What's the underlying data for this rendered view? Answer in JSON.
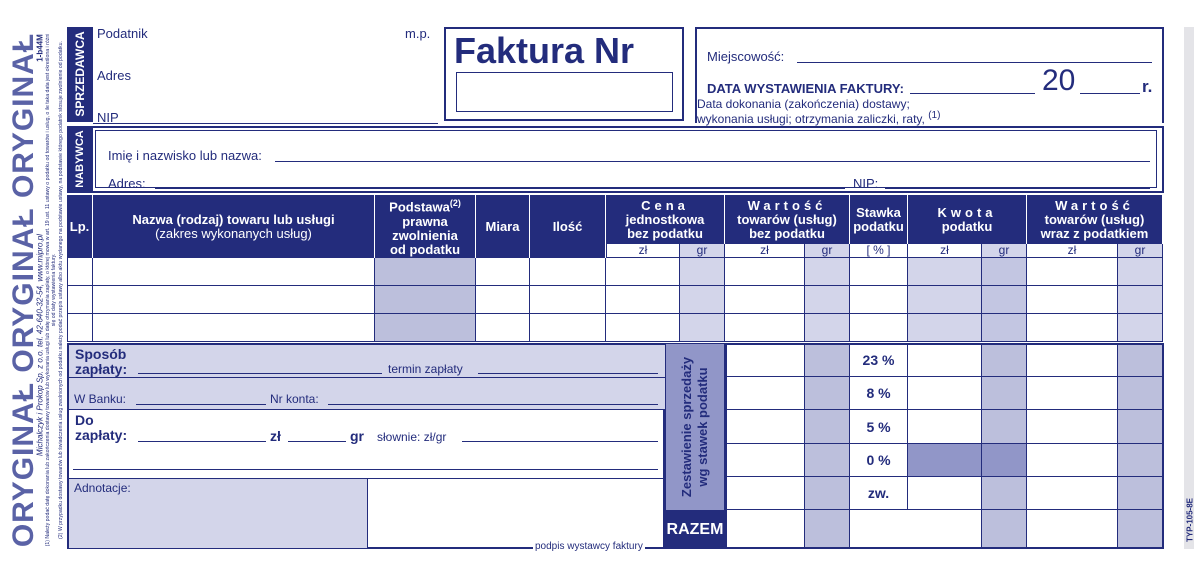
{
  "side": {
    "watermark": "ORYGINAŁ ORYGINAŁ ORYGINAŁ",
    "code": "1-b44M",
    "publisher": "Michalczyk i Prokop Sp. z o.o. tel. 42-640-32-54, www.mipro.pl",
    "footnote_1": "(1) Należy podać datę dokonania lub zakończenia dostawy towarów lub wykonania usługi lub datę otrzymania zapłaty, o której mowa w art. 19 ust. 11 ustawy o podatku od towarów i usług, o ile taka data jest określona i różni się od daty wystawienia faktury.",
    "footnote_2": "(2) W przypadku dostawy towarów lub świadczenia usług zwolnionych od podatku należy podać przepis ustawy albo aktu wydanego na podstawie ustawy, na podstawie którego podatnik stosuje zwolnienie od podatku.",
    "form_type": "TYP-105-8E"
  },
  "seller": {
    "label": "SPRZEDAWCA",
    "taxpayer": "Podatnik",
    "address": "Adres",
    "nip": "NIP",
    "stamp": "m.p."
  },
  "invoice": {
    "title": "Faktura Nr"
  },
  "dates": {
    "place": "Miejscowość:",
    "issue_date": "DATA WYSTAWIENIA FAKTURY:",
    "year_prefix": "20",
    "year_suffix": "r.",
    "delivery_date": "Data dokonania (zakończenia) dostawy;",
    "delivery_date_2": "wykonania usługi; otrzymania zaliczki, raty,",
    "footnote_ref": "(1)"
  },
  "buyer": {
    "label": "NABYWCA",
    "name": "Imię i nazwisko lub nazwa:",
    "address": "Adres:",
    "nip": "NIP:"
  },
  "table": {
    "columns": [
      {
        "lines": [
          "Lp."
        ]
      },
      {
        "lines": [
          "Nazwa (rodzaj) towaru lub usługi",
          "(zakres wykonanych usług)"
        ]
      },
      {
        "lines": [
          "Podstawa",
          "prawna",
          "zwolnienia",
          "od podatku"
        ],
        "ref": "(2)"
      },
      {
        "lines": [
          "Miara"
        ]
      },
      {
        "lines": [
          "Ilość"
        ]
      },
      {
        "lines": [
          "Cena",
          "jednostkowa",
          "bez podatku"
        ]
      },
      {
        "lines": [
          "Wartość",
          "towarów (usług)",
          "bez podatku"
        ]
      },
      {
        "lines": [
          "Stawka",
          "podatku"
        ]
      },
      {
        "lines": [
          "Kwota",
          "podatku"
        ]
      },
      {
        "lines": [
          "Wartość",
          "towarów (usług)",
          "wraz z podatkiem"
        ]
      }
    ],
    "subheaders": [
      "zł",
      "gr",
      "zł",
      "gr",
      "[ % ]",
      "zł",
      "gr",
      "zł",
      "gr"
    ]
  },
  "payment": {
    "method": [
      "Sposób",
      "zapłaty:"
    ],
    "due": "termin zapłaty",
    "bank": "W Banku:",
    "account": "Nr konta:",
    "to_pay": [
      "Do",
      "zapłaty:"
    ],
    "zl": "zł",
    "gr": "gr",
    "words": "słownie: zł/gr",
    "notes": "Adnotacje:",
    "signature": "podpis wystawcy faktury"
  },
  "summary": {
    "label": [
      "Zestawienie sprzedaży",
      "wg stawek podatku"
    ],
    "total": "RAZEM",
    "rates": [
      "23 %",
      "8 %",
      "5 %",
      "0 %",
      "zw."
    ]
  }
}
